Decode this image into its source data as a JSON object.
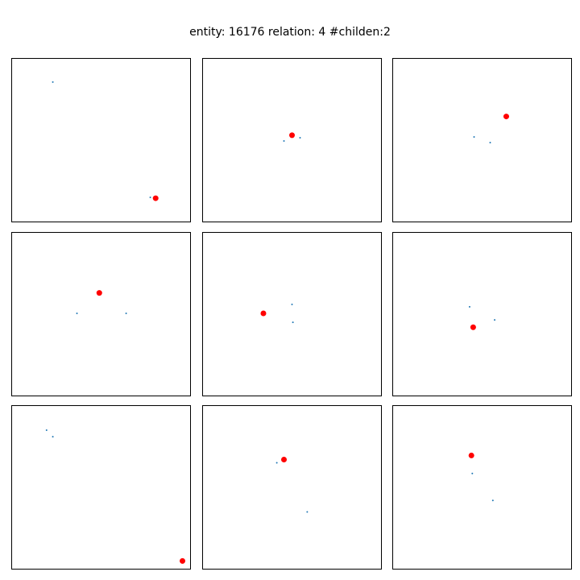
{
  "title": "entity: 16176  relation: 4  #childen:2",
  "colors": {
    "parent": "#ff0000",
    "child": "#1f77b4",
    "frame": "#000000"
  },
  "chart_data": {
    "type": "scatter",
    "title": "entity: 16176  relation: 4  #childen:2",
    "grid": false,
    "axes_visible": false,
    "panels": [
      {
        "parent": [
          0.805,
          0.145
        ],
        "children": [
          [
            0.23,
            0.855
          ],
          [
            0.775,
            0.15
          ]
        ]
      },
      {
        "parent": [
          0.5,
          0.53
        ],
        "children": [
          [
            0.455,
            0.495
          ],
          [
            0.545,
            0.515
          ]
        ]
      },
      {
        "parent": [
          0.635,
          0.645
        ],
        "children": [
          [
            0.455,
            0.52
          ],
          [
            0.545,
            0.485
          ]
        ]
      },
      {
        "parent": [
          0.49,
          0.63
        ],
        "children": [
          [
            0.365,
            0.505
          ],
          [
            0.64,
            0.505
          ]
        ]
      },
      {
        "parent": [
          0.34,
          0.505
        ],
        "children": [
          [
            0.5,
            0.56
          ],
          [
            0.505,
            0.45
          ]
        ]
      },
      {
        "parent": [
          0.45,
          0.42
        ],
        "children": [
          [
            0.43,
            0.545
          ],
          [
            0.57,
            0.465
          ]
        ]
      },
      {
        "parent": [
          0.955,
          0.05
        ],
        "children": [
          [
            0.195,
            0.85
          ],
          [
            0.23,
            0.81
          ]
        ]
      },
      {
        "parent": [
          0.455,
          0.67
        ],
        "children": [
          [
            0.415,
            0.65
          ],
          [
            0.585,
            0.35
          ]
        ]
      },
      {
        "parent": [
          0.44,
          0.695
        ],
        "children": [
          [
            0.445,
            0.585
          ],
          [
            0.56,
            0.42
          ]
        ]
      }
    ]
  }
}
